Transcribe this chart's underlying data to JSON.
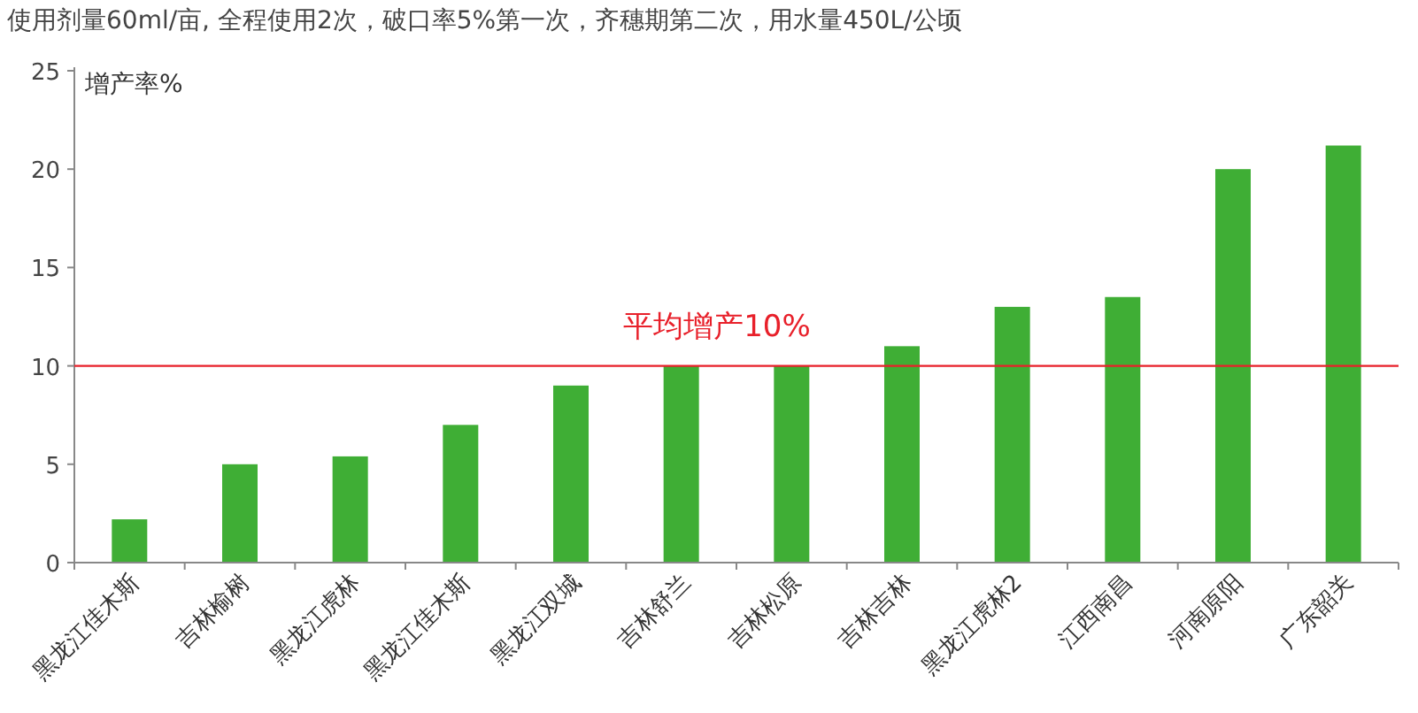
{
  "chart_data": {
    "type": "bar",
    "title": "使用剂量60ml/亩, 全程使用2次，破口率5%第一次，齐穗期第二次，用水量450L/公顷",
    "ylabel": "增产率%",
    "categories": [
      "黑龙江佳木斯",
      "吉林榆树",
      "黑龙江虎林",
      "黑龙江佳木斯",
      "黑龙江双城",
      "吉林舒兰",
      "吉林松原",
      "吉林吉林",
      "黑龙江虎林2",
      "江西南昌",
      "河南原阳",
      "广东韶关"
    ],
    "values": [
      2.2,
      5.0,
      5.4,
      7.0,
      9.0,
      10.0,
      10.0,
      11.0,
      13.0,
      13.5,
      20.0,
      21.2
    ],
    "color": "#3fae35",
    "ylim": [
      0,
      25
    ],
    "yticks": [
      0,
      5,
      10,
      15,
      20,
      25
    ],
    "ref_lines": [
      {
        "axis": "y",
        "value": 10,
        "label": "平均增产10%",
        "color": "#e8202a"
      }
    ],
    "grid": false
  }
}
